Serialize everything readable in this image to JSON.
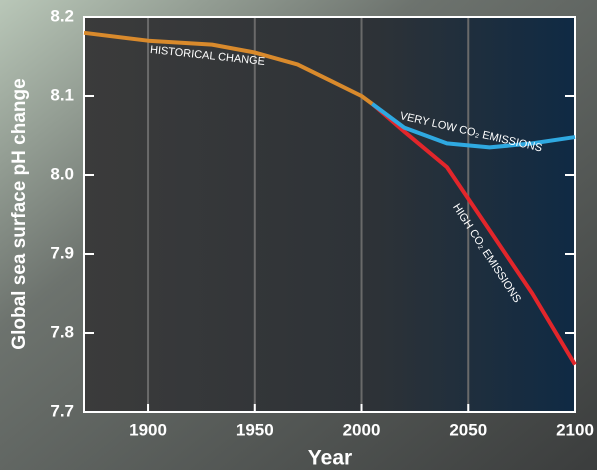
{
  "chart_data": {
    "type": "line",
    "x_label": "Year",
    "y_label": "Global sea surface pH change",
    "series": [
      {
        "name": "HISTORICAL CHANGE",
        "color": "#d98a2c",
        "x": [
          1870,
          1900,
          1930,
          1950,
          1970,
          1985,
          2000,
          2005
        ],
        "values": [
          8.18,
          8.17,
          8.165,
          8.155,
          8.14,
          8.12,
          8.1,
          8.09
        ]
      },
      {
        "name": "VERY LOW CO₂ EMISSIONS",
        "color": "#2fa9e1",
        "x": [
          2005,
          2020,
          2040,
          2060,
          2080,
          2100
        ],
        "values": [
          8.09,
          8.06,
          8.04,
          8.035,
          8.04,
          8.048
        ]
      },
      {
        "name": "HIGH CO₂ EMISSIONS",
        "color": "#e2262b",
        "x": [
          2005,
          2020,
          2040,
          2060,
          2080,
          2100
        ],
        "values": [
          8.09,
          8.055,
          8.01,
          7.93,
          7.85,
          7.76
        ]
      }
    ],
    "xlim": [
      1870,
      2100
    ],
    "xticks": [
      1900,
      1950,
      2000,
      2050,
      2100
    ],
    "ylim": [
      7.7,
      8.2
    ],
    "yticks": [
      8.2,
      8.1,
      {
        "value": 8,
        "label": "8.0"
      },
      7.9,
      7.8,
      7.7
    ],
    "grid": true
  }
}
